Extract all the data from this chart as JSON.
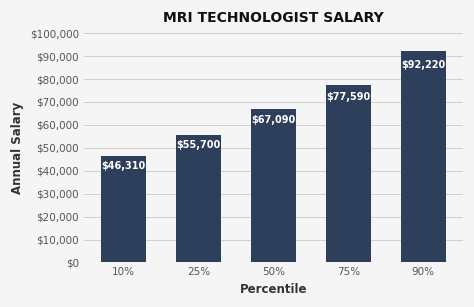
{
  "title": "MRI TECHNOLOGIST SALARY",
  "categories": [
    "10%",
    "25%",
    "50%",
    "75%",
    "90%"
  ],
  "values": [
    46310,
    55700,
    67090,
    77590,
    92220
  ],
  "labels": [
    "$46,310",
    "$55,700",
    "$67,090",
    "$77,590",
    "$92,220"
  ],
  "bar_color": "#2E3F5C",
  "xlabel": "Percentile",
  "ylabel": "Annual Salary",
  "ylim": [
    0,
    100000
  ],
  "yticks": [
    0,
    10000,
    20000,
    30000,
    40000,
    50000,
    60000,
    70000,
    80000,
    90000,
    100000
  ],
  "background_color": "#f5f5f5",
  "grid_color": "#d0d0d0",
  "title_fontsize": 10,
  "label_fontsize": 7,
  "axis_label_fontsize": 8.5,
  "tick_fontsize": 7.5,
  "tick_color": "#555555"
}
